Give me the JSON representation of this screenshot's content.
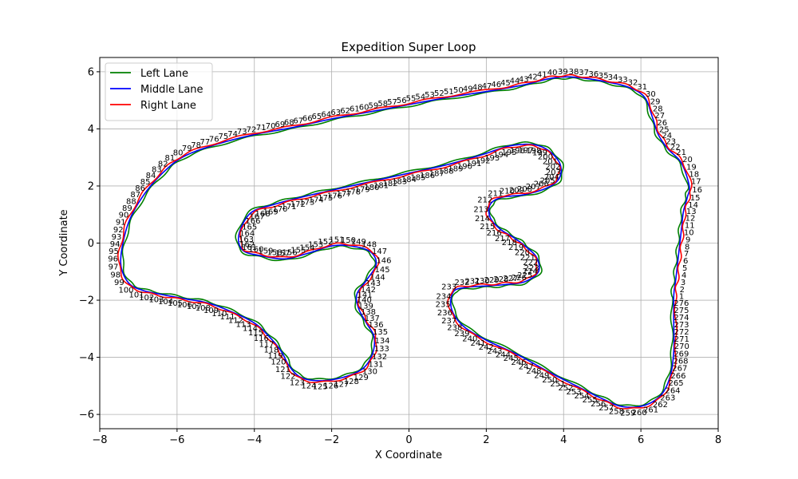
{
  "chart_data": {
    "type": "line",
    "title": "Expedition Super Loop",
    "xlabel": "X Coordinate",
    "ylabel": "Y Coordinate",
    "xlim": [
      -8.0,
      8.0
    ],
    "ylim": [
      -6.5,
      6.5
    ],
    "xticks": [
      -8,
      -6,
      -4,
      -2,
      0,
      2,
      4,
      6,
      8
    ],
    "yticks": [
      -6,
      -4,
      -2,
      0,
      2,
      4,
      6
    ],
    "xtick_labels": [
      "−8",
      "−6",
      "−4",
      "−2",
      "0",
      "2",
      "4",
      "6",
      "8"
    ],
    "ytick_labels": [
      "−6",
      "−4",
      "−2",
      "0",
      "2",
      "4",
      "6"
    ],
    "grid": true,
    "legend_position": "top-left",
    "point_labels": "1-276",
    "centerline": [
      [
        6.85,
        -1.85
      ],
      [
        6.9,
        -1.3
      ],
      [
        6.95,
        -0.7
      ],
      [
        7.0,
        -0.1
      ],
      [
        7.05,
        0.5
      ],
      [
        7.1,
        1.1
      ],
      [
        7.2,
        1.6
      ],
      [
        7.25,
        2.0
      ],
      [
        7.05,
        2.8
      ],
      [
        6.7,
        3.3
      ],
      [
        6.45,
        3.8
      ],
      [
        6.3,
        4.4
      ],
      [
        6.1,
        5.1
      ],
      [
        5.7,
        5.45
      ],
      [
        5.1,
        5.65
      ],
      [
        4.5,
        5.78
      ],
      [
        4.05,
        5.82
      ],
      [
        3.6,
        5.75
      ],
      [
        3.0,
        5.55
      ],
      [
        2.2,
        5.35
      ],
      [
        1.0,
        5.1
      ],
      [
        0.0,
        4.85
      ],
      [
        -1.0,
        4.6
      ],
      [
        -2.0,
        4.35
      ],
      [
        -3.0,
        4.05
      ],
      [
        -4.0,
        3.8
      ],
      [
        -5.0,
        3.45
      ],
      [
        -5.8,
        3.05
      ],
      [
        -6.3,
        2.55
      ],
      [
        -6.8,
        1.8
      ],
      [
        -7.2,
        0.9
      ],
      [
        -7.4,
        0.0
      ],
      [
        -7.45,
        -0.8
      ],
      [
        -7.25,
        -1.4
      ],
      [
        -6.9,
        -1.65
      ],
      [
        -6.4,
        -1.8
      ],
      [
        -5.8,
        -1.95
      ],
      [
        -5.2,
        -2.1
      ],
      [
        -4.6,
        -2.4
      ],
      [
        -4.0,
        -2.8
      ],
      [
        -3.6,
        -3.3
      ],
      [
        -3.3,
        -3.8
      ],
      [
        -3.1,
        -4.3
      ],
      [
        -2.8,
        -4.7
      ],
      [
        -2.3,
        -4.82
      ],
      [
        -1.7,
        -4.7
      ],
      [
        -1.2,
        -4.4
      ],
      [
        -0.95,
        -3.9
      ],
      [
        -0.9,
        -3.3
      ],
      [
        -1.1,
        -2.8
      ],
      [
        -1.3,
        -2.3
      ],
      [
        -1.35,
        -1.8
      ],
      [
        -1.1,
        -1.3
      ],
      [
        -0.85,
        -0.75
      ],
      [
        -1.0,
        -0.3
      ],
      [
        -1.5,
        -0.1
      ],
      [
        -2.0,
        -0.1
      ],
      [
        -2.6,
        -0.35
      ],
      [
        -3.2,
        -0.55
      ],
      [
        -3.8,
        -0.45
      ],
      [
        -4.3,
        -0.25
      ],
      [
        -4.4,
        0.3
      ],
      [
        -4.1,
        1.05
      ],
      [
        -3.5,
        1.35
      ],
      [
        -2.8,
        1.6
      ],
      [
        -2.0,
        1.85
      ],
      [
        -1.0,
        2.15
      ],
      [
        0.0,
        2.45
      ],
      [
        1.0,
        2.75
      ],
      [
        1.9,
        3.1
      ],
      [
        2.6,
        3.4
      ],
      [
        3.2,
        3.45
      ],
      [
        3.6,
        3.25
      ],
      [
        3.9,
        2.8
      ],
      [
        3.9,
        2.3
      ],
      [
        3.6,
        1.95
      ],
      [
        3.0,
        1.7
      ],
      [
        2.4,
        1.6
      ],
      [
        2.1,
        1.35
      ],
      [
        2.1,
        0.9
      ],
      [
        2.35,
        0.5
      ],
      [
        2.7,
        0.2
      ],
      [
        3.0,
        -0.1
      ],
      [
        3.3,
        -0.5
      ],
      [
        3.35,
        -1.0
      ],
      [
        3.0,
        -1.35
      ],
      [
        2.5,
        -1.45
      ],
      [
        2.0,
        -1.5
      ],
      [
        1.5,
        -1.55
      ],
      [
        1.15,
        -1.7
      ],
      [
        1.1,
        -2.3
      ],
      [
        1.4,
        -2.9
      ],
      [
        2.0,
        -3.4
      ],
      [
        2.8,
        -3.9
      ],
      [
        3.6,
        -4.5
      ],
      [
        4.4,
        -5.05
      ],
      [
        5.0,
        -5.45
      ],
      [
        5.5,
        -5.72
      ],
      [
        6.05,
        -5.7
      ],
      [
        6.5,
        -5.35
      ],
      [
        6.75,
        -4.7
      ],
      [
        6.85,
        -3.8
      ],
      [
        6.85,
        -2.8
      ],
      [
        6.85,
        -1.85
      ]
    ],
    "series": [
      {
        "name": "Left Lane",
        "color": "#008000"
      },
      {
        "name": "Middle Lane",
        "color": "#0000ff"
      },
      {
        "name": "Right Lane",
        "color": "#ff0000"
      }
    ]
  }
}
